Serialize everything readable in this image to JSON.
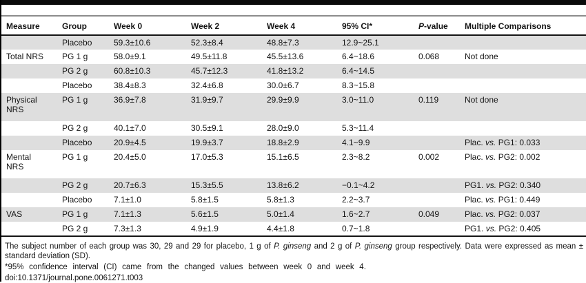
{
  "table": {
    "columns": [
      "Measure",
      "Group",
      "Week 0",
      "Week 2",
      "Week 4",
      "95% CI*",
      "P-value",
      "Multiple Comparisons"
    ],
    "rows": [
      {
        "measure": "",
        "group": "Placebo",
        "week0": "59.3±10.6",
        "week2": "52.3±8.4",
        "week4": "48.8±7.3",
        "ci": "12.9~25.1",
        "p": "",
        "mc": ""
      },
      {
        "measure": "Total NRS",
        "group": "PG 1 g",
        "week0": "58.0±9.1",
        "week2": "49.5±11.8",
        "week4": "45.5±13.6",
        "ci": "6.4~18.6",
        "p": "0.068",
        "mc": "Not done"
      },
      {
        "measure": "",
        "group": "PG 2 g",
        "week0": "60.8±10.3",
        "week2": "45.7±12.3",
        "week4": "41.8±13.2",
        "ci": "6.4~14.5",
        "p": "",
        "mc": ""
      },
      {
        "measure": "",
        "group": "Placebo",
        "week0": "38.4±8.3",
        "week2": "32.4±6.8",
        "week4": "30.0±6.7",
        "ci": "8.3~15.8",
        "p": "",
        "mc": ""
      },
      {
        "measure": "Physical\nNRS",
        "group": "PG 1 g",
        "week0": "36.9±7.8",
        "week2": "31.9±9.7",
        "week4": "29.9±9.9",
        "ci": "3.0~11.0",
        "p": "0.119",
        "mc": "Not done"
      },
      {
        "measure": "",
        "group": "PG 2 g",
        "week0": "40.1±7.0",
        "week2": "30.5±9.1",
        "week4": "28.0±9.0",
        "ci": "5.3~11.4",
        "p": "",
        "mc": ""
      },
      {
        "measure": "",
        "group": "Placebo",
        "week0": "20.9±4.5",
        "week2": "19.9±3.7",
        "week4": "18.8±2.9",
        "ci": "4.1~9.9",
        "p": "",
        "mc": "Plac. vs. PG1: 0.033"
      },
      {
        "measure": "Mental\nNRS",
        "group": "PG 1 g",
        "week0": "20.4±5.0",
        "week2": "17.0±5.3",
        "week4": "15.1±6.5",
        "ci": "2.3~8.2",
        "p": "0.002",
        "mc": "Plac. vs. PG2: 0.002"
      },
      {
        "measure": "",
        "group": "PG 2 g",
        "week0": "20.7±6.3",
        "week2": "15.3±5.5",
        "week4": "13.8±6.2",
        "ci": "−0.1~4.2",
        "p": "",
        "mc": "PG1. vs. PG2: 0.340"
      },
      {
        "measure": "",
        "group": "Placebo",
        "week0": "7.1±1.0",
        "week2": "5.8±1.5",
        "week4": "5.8±1.3",
        "ci": "2.2~3.7",
        "p": "",
        "mc": "Plac. vs. PG1: 0.449"
      },
      {
        "measure": "VAS",
        "group": "PG 1 g",
        "week0": "7.1±1.3",
        "week2": "5.6±1.5",
        "week4": "5.0±1.4",
        "ci": "1.6~2.7",
        "p": "0.049",
        "mc": "Plac. vs. PG2: 0.037"
      },
      {
        "measure": "",
        "group": "PG 2 g",
        "week0": "7.3±1.3",
        "week2": "4.9±1.9",
        "week4": "4.4±1.8",
        "ci": "0.7~1.8",
        "p": "",
        "mc": "PG1. vs. PG2: 0.405"
      }
    ]
  },
  "footnotes": {
    "subjects": "The subject number of each group was 30, 29 and 29 for placebo, 1 g of P. ginseng and 2 g of P. ginseng group respectively. Data were expressed as mean ± standard deviation (SD).",
    "ci": "*95% confidence interval (CI) came from the changed values between week 0 and week 4.",
    "doi": "doi:10.1371/journal.pone.0061271.t003"
  },
  "colors": {
    "stripe": "#dedede",
    "rule_dark": "#141414",
    "rule_light": "#8c8c8c",
    "text": "#141414"
  }
}
